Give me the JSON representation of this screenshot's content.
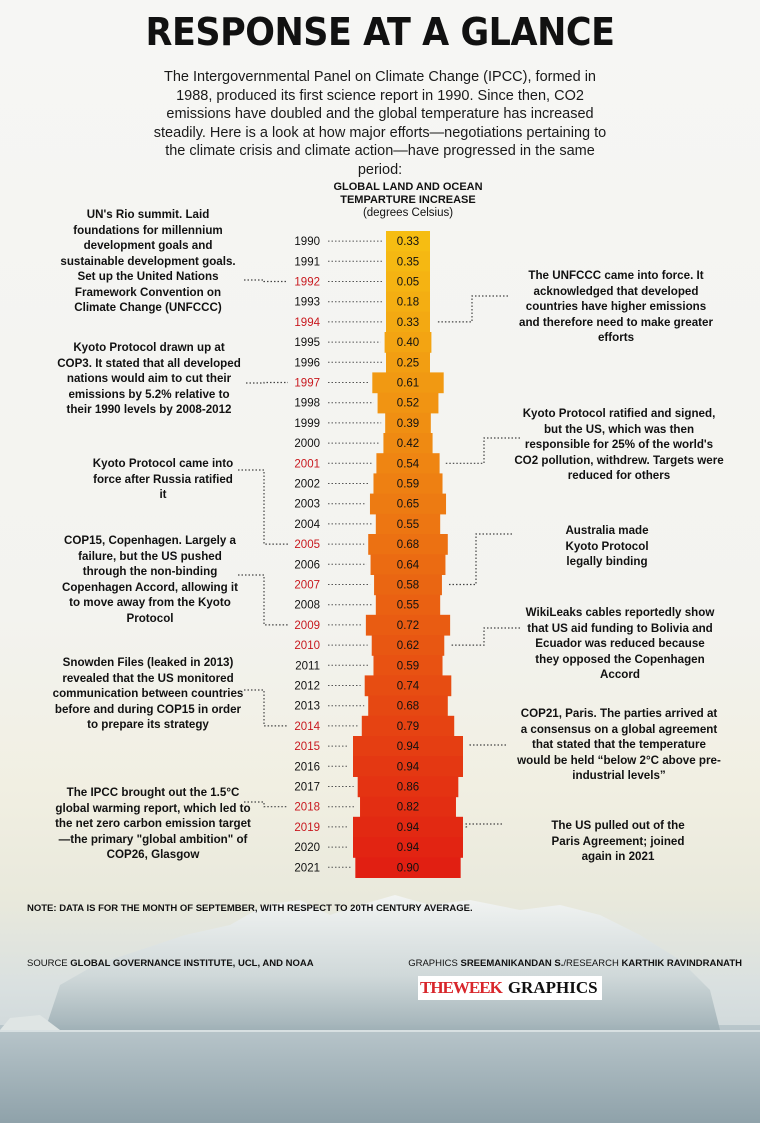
{
  "header": {
    "title": "RESPONSE AT A GLANCE",
    "intro": "The Intergovernmental Panel on Climate Change (IPCC), formed in 1988, produced its first science report in 1990. Since then, CO2 emissions have doubled and the global temperature has increased steadily. Here is a look at how major efforts—negotiations pertaining to the climate crisis and climate action—have progressed in the same period:"
  },
  "chart_data": {
    "type": "bar",
    "title": "GLOBAL LAND AND OCEAN TEMPARTURE INCREASE",
    "subtitle": "(degrees Celsius)",
    "categories": [
      "1990",
      "1991",
      "1992",
      "1993",
      "1994",
      "1995",
      "1996",
      "1997",
      "1998",
      "1999",
      "2000",
      "2001",
      "2002",
      "2003",
      "2004",
      "2005",
      "2006",
      "2007",
      "2008",
      "2009",
      "2010",
      "2011",
      "2012",
      "2013",
      "2014",
      "2015",
      "2016",
      "2017",
      "2018",
      "2019",
      "2020",
      "2021"
    ],
    "values": [
      0.33,
      0.35,
      0.05,
      0.18,
      0.33,
      0.4,
      0.25,
      0.61,
      0.52,
      0.39,
      0.42,
      0.54,
      0.59,
      0.65,
      0.55,
      0.68,
      0.64,
      0.58,
      0.55,
      0.72,
      0.62,
      0.59,
      0.74,
      0.68,
      0.79,
      0.94,
      0.94,
      0.86,
      0.82,
      0.94,
      0.94,
      0.9
    ],
    "value_labels": [
      "0.33",
      "0.35",
      "0.05",
      "0.18",
      "0.33",
      "0.40",
      "0.25",
      "0.61",
      "0.52",
      "0.39",
      "0.42",
      "0.54",
      "0.59",
      "0.65",
      "0.55",
      "0.68",
      "0.64",
      "0.58",
      "0.55",
      "0.72",
      "0.62",
      "0.59",
      "0.74",
      "0.68",
      "0.79",
      "0.94",
      "0.94",
      "0.86",
      "0.82",
      "0.94",
      "0.94",
      "0.90"
    ],
    "highlight_years": [
      "1992",
      "1994",
      "1997",
      "2001",
      "2005",
      "2007",
      "2009",
      "2010",
      "2014",
      "2015",
      "2018",
      "2019"
    ],
    "orientation": "vertical-stack, centered bars",
    "colors": {
      "low": "#f6bd12",
      "high": "#e11f12",
      "year_text": "#111111",
      "highlight_year_text": "#c8191f"
    }
  },
  "annotations": {
    "left": [
      {
        "text": "UN's Rio summit. Laid foundations for millennium development goals and sustainable development goals. Set up the United Nations Framework Convention on Climate Change (UNFCCC)",
        "year": "1992"
      },
      {
        "text": "Kyoto Protocol drawn up at COP3. It stated that all developed nations would aim to cut their emissions by 5.2% relative to their 1990 levels by 2008-2012",
        "year": "1997"
      },
      {
        "text": "Kyoto Protocol came into force after Russia ratified it",
        "year": "2005"
      },
      {
        "text": "COP15, Copenhagen. Largely a failure, but the US pushed through the non-binding Copenhagen Accord, allowing it to move away from the Kyoto Protocol",
        "year": "2009"
      },
      {
        "text": "Snowden Files (leaked in 2013) revealed that the US monitored communication between countries before and during COP15 in order to prepare its strategy",
        "year": "2014"
      },
      {
        "text": "The IPCC brought out the 1.5°C global warming report, which led to the net zero carbon emission target—the primary \"global ambition\" of COP26, Glasgow",
        "year": "2018"
      }
    ],
    "right": [
      {
        "text": "The UNFCCC came into force. It acknowledged that developed countries have higher emissions and therefore need to make greater efforts",
        "year": "1994"
      },
      {
        "text": "Kyoto Protocol ratified and signed, but the US, which was then responsible for 25% of the world's CO2 pollution, withdrew. Targets were reduced for others",
        "year": "2001"
      },
      {
        "text": "Australia made Kyoto Protocol legally binding",
        "year": "2007"
      },
      {
        "text": "WikiLeaks cables reportedly show that US aid funding to Bolivia and Ecuador was reduced because they opposed the Copenhagen Accord",
        "year": "2010"
      },
      {
        "text": "COP21, Paris. The parties arrived at a consensus on a global agreement that stated that the temperature would be held “below 2°C above pre-industrial levels”",
        "year": "2015"
      },
      {
        "text": "The US pulled out of the Paris Agreement; joined again in 2021",
        "year": "2019"
      }
    ]
  },
  "footer": {
    "note": "NOTE: DATA IS FOR THE MONTH OF SEPTEMBER, WITH RESPECT TO 20TH CENTURY AVERAGE.",
    "source_label": "SOURCE",
    "source": "GLOBAL GOVERNANCE INSTITUTE, UCL, AND NOAA",
    "graphics_label": "GRAPHICS",
    "graphics": "SREEMANIKANDAN S.",
    "research_label": "/RESEARCH",
    "research": "KARTHIK RAVINDRANATH",
    "brand_a": "THEWEEK",
    "brand_b": "GRAPHICS"
  }
}
